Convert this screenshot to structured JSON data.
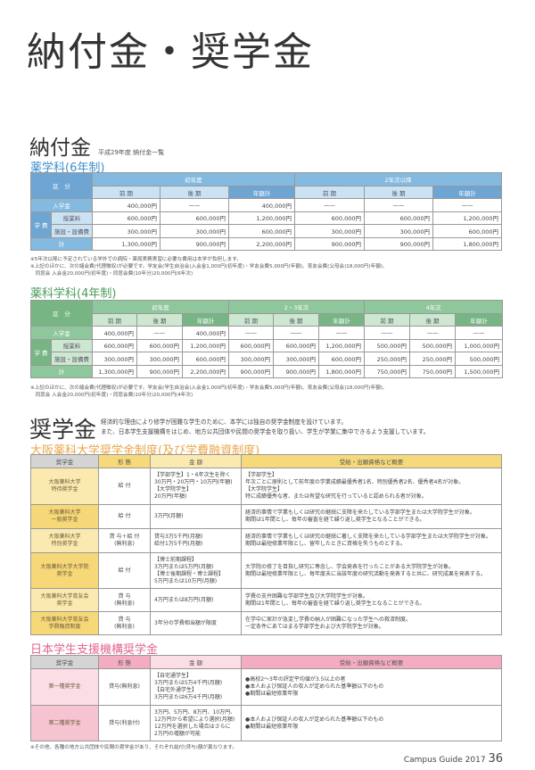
{
  "title": "納付金・奨学金",
  "fees": {
    "heading": "納付金",
    "subtitle": "平成29年度 納付金一覧",
    "colors": {
      "blue_header": "#84b9e0",
      "blue_light": "#cbe2f3",
      "blue_dark": "#6fa5d3",
      "green_header": "#8fc79c",
      "green_light": "#cde7d0",
      "green_dark": "#78b585"
    },
    "t6": {
      "label": "薬学科(6年制)",
      "kubun": "区　分",
      "groups": [
        "初年度",
        "2年次以降"
      ],
      "cols": [
        "前 期",
        "後 期",
        "年額計",
        "前 期",
        "後 期",
        "年額計"
      ],
      "gakuhi": "学 費",
      "rows": [
        {
          "label": "入学金",
          "values": [
            "400,000円",
            "——",
            "400,000円",
            "——",
            "——",
            "——"
          ]
        },
        {
          "label": "授業料",
          "values": [
            "600,000円",
            "600,000円",
            "1,200,000円",
            "600,000円",
            "600,000円",
            "1,200,000円"
          ]
        },
        {
          "label": "施設・設備費",
          "values": [
            "300,000円",
            "300,000円",
            "600,000円",
            "300,000円",
            "300,000円",
            "600,000円"
          ]
        },
        {
          "label": "計",
          "values": [
            "1,300,000円",
            "900,000円",
            "2,200,000円",
            "900,000円",
            "900,000円",
            "1,800,000円"
          ]
        }
      ],
      "notes": [
        "※5年次以降に予定されている学外での病院・薬局実務実習に必要な費用は本学が負担します。",
        "※上記のほかに、次の諸会費(代理徴収)が必要です。学友会(学生自治会)入会金1,000円(初年度)・学友会費5,000円(年額)、育友会費(父母会)18,000円(年額)、",
        "　同窓会 入会金20,000円(初年度)・同窓会費(10年分)20,000円(6年次)"
      ]
    },
    "t4": {
      "label": "薬科学科(4年制)",
      "kubun": "区　分",
      "groups": [
        "初年度",
        "2・3年次",
        "4年次"
      ],
      "cols": [
        "前 期",
        "後 期",
        "年額計",
        "前 期",
        "後 期",
        "年額計",
        "前 期",
        "後 期",
        "年額計"
      ],
      "gakuhi": "学 費",
      "rows": [
        {
          "label": "入学金",
          "values": [
            "400,000円",
            "——",
            "400,000円",
            "——",
            "——",
            "——",
            "——",
            "——",
            "——"
          ]
        },
        {
          "label": "授業料",
          "values": [
            "600,000円",
            "600,000円",
            "1,200,000円",
            "600,000円",
            "600,000円",
            "1,200,000円",
            "500,000円",
            "500,000円",
            "1,000,000円"
          ]
        },
        {
          "label": "施設・設備費",
          "values": [
            "300,000円",
            "300,000円",
            "600,000円",
            "300,000円",
            "300,000円",
            "600,000円",
            "250,000円",
            "250,000円",
            "500,000円"
          ]
        },
        {
          "label": "計",
          "values": [
            "1,300,000円",
            "900,000円",
            "2,200,000円",
            "900,000円",
            "900,000円",
            "1,800,000円",
            "750,000円",
            "750,000円",
            "1,500,000円"
          ]
        }
      ],
      "notes": [
        "※上記のほかに、次の諸会費(代理徴収)が必要です。学友会(学生自治会)入会金1,000円(初年度)・学友会費5,000円(年額)、育友会費(父母会)18,000円(年額)、",
        "　同窓会 入会金20,000円(初年度)・同窓会費(10年分)20,000円(4年次)"
      ]
    }
  },
  "scholarship": {
    "heading": "奨学金",
    "desc": [
      "経済的な理由により修学が困難な学生のために、本学には独自の奨学金制度を設けています。",
      "また、日本学生支援機構をはじめ、地方公共団体や民間の奨学金を取り扱い、学生が学業に集中できるよう支援しています。"
    ],
    "osaka": {
      "label": "大阪薬科大学奨学金制度(及び学費融資制度)",
      "color": "#e8a64a",
      "header_color": "#f5d97a",
      "cell_light": "#fbeab0",
      "cell_dark": "#f6d878",
      "headers": [
        "奨学金",
        "形 態",
        "金 額",
        "受給・出願資格など概要"
      ],
      "rows": [
        {
          "name": "大阪薬科大学\n特待奨学金",
          "type": "給 付",
          "amount": "【学部学生】1・6年次生を除く\n30万円・20万円・10万円(年額)\n【大学院学生】\n20万円(年額)",
          "summary": "【学部学生】\n年次ごとに原則として前年度の学業成績最優秀者1名、特別優秀者2名、優秀者4名が対象。\n【大学院学生】\n特に成績優秀な者、または有望な研究を行っていると認められる者が対象。"
        },
        {
          "name": "大阪薬科大学\n一般奨学金",
          "type": "給 付",
          "amount": "3万円(月額)",
          "summary": "経済的事情で学業もしくは研究の継続に支障を来たしている学部学生または大学院学生が対象。\n期間は1年間とし、毎年の審査を経て繰り返し奨学生となることができる。"
        },
        {
          "name": "大阪薬科大学\n特別奨学金",
          "type": "貸 与＋給 付\n(無利息)",
          "amount": "貸与3万5千円(月額)\n給付1万5千円(月額)",
          "summary": "経済的事情で学業もしくは研究の継続に著しく支障を来たしている学部学生または大学院学生が対象。\n期間は最短修業年限とし、留年したときに資格を失うものとする。"
        },
        {
          "name": "大阪薬科大学大学院\n奨学金",
          "type": "給 付",
          "amount": "【博士前期課程】\n3万円または5万円(月額)\n【博士後期課程・博士課程】\n5万円または10万円(月額)",
          "summary": "大学院の修了を目指し研究に専念し、学会発表を行ったことがある大学院学生が対象。\n期間は最短修業年限とし、毎年度末に当該年度の研究活動を発表すると共に、研究成果を発表する。"
        },
        {
          "name": "大阪薬科大学育友会\n奨学金",
          "type": "貸 与\n(無利息)",
          "amount": "4万円または8万円(月額)",
          "summary": "学費の支弁困難な学部学生及び大学院学生が対象。\n期間は1年間とし、毎年の審査を経て繰り返し奨学生となることができる。"
        },
        {
          "name": "大阪薬科大学育友会\n学費融資制度",
          "type": "貸 与\n(無利息)",
          "amount": "3年分の学費相当額が限度",
          "summary": "在学中に家計が急変し学費の納入が困難になった学生への救済制度。\n一定条件にあてはまる学部学生および大学院学生が対象。"
        }
      ]
    },
    "jasso": {
      "label": "日本学生支援機構奨学金",
      "color": "#e2668f",
      "header_color": "#f4adc0",
      "cell_light": "#fbdde5",
      "cell_dark": "#f6c3d1",
      "headers": [
        "奨学金",
        "形 態",
        "金 額",
        "受給・出願資格など概要"
      ],
      "rows": [
        {
          "name": "第一種奨学金",
          "type": "貸与(無利息)",
          "amount": "【自宅通学生】\n3万円または5万4千円(月額)\n【自宅外通学生】\n3万円または6万4千円(月額)",
          "summary": "●高校2～3年の評定平均値が3.5以上の者\n●本人および保証人の収入が定められた基準額以下のもの\n●期間は最短修業年限"
        },
        {
          "name": "第二種奨学金",
          "type": "貸与(利息付)",
          "amount": "3万円、5万円、8万円、10万円、\n12万円から希望により選択(月額)\n12万円を選択した場合はさらに\n2万円の増額が可能",
          "summary": "●本人および保証人の収入が定められた基準額以下のもの\n●期間は最短修業年限"
        }
      ],
      "note": "※その他、各種の地方公共団体や民間の奨学金があり、それぞれ給付(貸与)額が異なります。"
    }
  },
  "footer": {
    "text": "Campus Guide 2017",
    "page": "36"
  }
}
